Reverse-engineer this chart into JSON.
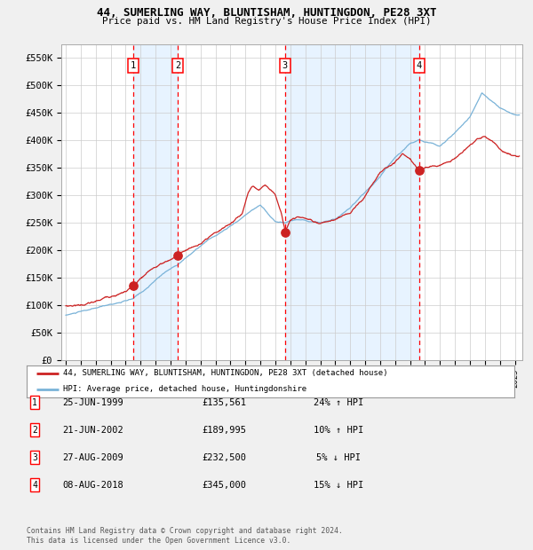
{
  "title": "44, SUMERLING WAY, BLUNTISHAM, HUNTINGDON, PE28 3XT",
  "subtitle": "Price paid vs. HM Land Registry's House Price Index (HPI)",
  "legend_line1": "44, SUMERLING WAY, BLUNTISHAM, HUNTINGDON, PE28 3XT (detached house)",
  "legend_line2": "HPI: Average price, detached house, Huntingdonshire",
  "footer1": "Contains HM Land Registry data © Crown copyright and database right 2024.",
  "footer2": "This data is licensed under the Open Government Licence v3.0.",
  "transactions": [
    {
      "num": 1,
      "date": "25-JUN-1999",
      "price": 135561,
      "pct": "24%",
      "dir": "↑",
      "year_x": 1999.48
    },
    {
      "num": 2,
      "date": "21-JUN-2002",
      "price": 189995,
      "pct": "10%",
      "dir": "↑",
      "year_x": 2002.47
    },
    {
      "num": 3,
      "date": "27-AUG-2009",
      "price": 232500,
      "pct": "5%",
      "dir": "↓",
      "year_x": 2009.65
    },
    {
      "num": 4,
      "date": "08-AUG-2018",
      "price": 345000,
      "pct": "15%",
      "dir": "↓",
      "year_x": 2018.6
    }
  ],
  "hpi_color": "#7ab3d8",
  "price_color": "#cc2222",
  "shade_color": "#ddeeff",
  "chart_bg": "#ffffff",
  "grid_color": "#cccccc",
  "fig_bg": "#f0f0f0",
  "ylim": [
    0,
    575000
  ],
  "xlim_start": 1994.7,
  "xlim_end": 2025.5,
  "yticks": [
    0,
    50000,
    100000,
    150000,
    200000,
    250000,
    300000,
    350000,
    400000,
    450000,
    500000,
    550000
  ]
}
